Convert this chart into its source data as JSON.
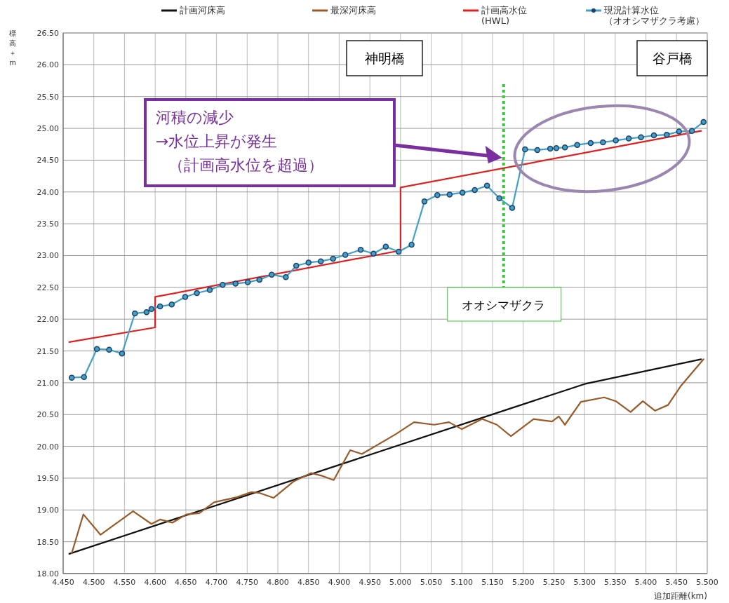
{
  "chart_data": {
    "type": "line",
    "xlabel": "追加距離(km)",
    "ylabel": "標高＋m",
    "xlim": [
      4.45,
      5.5
    ],
    "xticks": [
      {
        "value": 4.45,
        "label": "4.450"
      },
      {
        "value": 4.5,
        "label": "4.500"
      },
      {
        "value": 4.55,
        "label": "4.550"
      },
      {
        "value": 4.6,
        "label": "4.600"
      },
      {
        "value": 4.65,
        "label": "4.650"
      },
      {
        "value": 4.7,
        "label": "4.700"
      },
      {
        "value": 4.75,
        "label": "4.750"
      },
      {
        "value": 4.8,
        "label": "4.800"
      },
      {
        "value": 4.85,
        "label": "4.850"
      },
      {
        "value": 4.9,
        "label": "4.900"
      },
      {
        "value": 4.95,
        "label": "4.950"
      },
      {
        "value": 5.0,
        "label": "5.000"
      },
      {
        "value": 5.05,
        "label": "5.050"
      },
      {
        "value": 5.1,
        "label": "5.100"
      },
      {
        "value": 5.15,
        "label": "5.150"
      },
      {
        "value": 5.2,
        "label": "5.200"
      },
      {
        "value": 5.25,
        "label": "5.250"
      },
      {
        "value": 5.3,
        "label": "5.300"
      },
      {
        "value": 5.35,
        "label": "5.350"
      },
      {
        "value": 5.4,
        "label": "5.400"
      },
      {
        "value": 5.45,
        "label": "5.450"
      },
      {
        "value": 5.5,
        "label": "5.500"
      }
    ],
    "ylim": [
      18,
      26.5
    ],
    "yticks": [
      {
        "value": 18,
        "label": "18.00"
      },
      {
        "value": 18.5,
        "label": "18.50"
      },
      {
        "value": 19,
        "label": "19.00"
      },
      {
        "value": 19.5,
        "label": "19.50"
      },
      {
        "value": 20,
        "label": "20.00"
      },
      {
        "value": 20.5,
        "label": "20.50"
      },
      {
        "value": 21,
        "label": "21.00"
      },
      {
        "value": 21.5,
        "label": "21.50"
      },
      {
        "value": 22,
        "label": "22.00"
      },
      {
        "value": 22.5,
        "label": "22.50"
      },
      {
        "value": 23,
        "label": "23.00"
      },
      {
        "value": 23.5,
        "label": "23.50"
      },
      {
        "value": 24,
        "label": "24.00"
      },
      {
        "value": 24.5,
        "label": "24.50"
      },
      {
        "value": 25,
        "label": "25.00"
      },
      {
        "value": 25.5,
        "label": "25.50"
      },
      {
        "value": 26,
        "label": "26.00"
      },
      {
        "value": 26.5,
        "label": "26.50"
      }
    ],
    "grid": true,
    "legend": "top",
    "line_style": "solid",
    "series": [
      {
        "name": "計画河床高",
        "color": "#111111",
        "marker": "none",
        "x": [
          4.46,
          5.3,
          5.49
        ],
        "values": [
          18.31,
          20.98,
          21.37
        ]
      },
      {
        "name": "最深河床高",
        "color": "#9a5a28",
        "marker": "none",
        "x": [
          4.464,
          4.483,
          4.511,
          4.564,
          4.594,
          4.608,
          4.628,
          4.651,
          4.672,
          4.696,
          4.733,
          4.757,
          4.769,
          4.793,
          4.826,
          4.854,
          4.871,
          4.891,
          4.918,
          4.937,
          4.992,
          5.022,
          5.055,
          5.079,
          5.1,
          5.133,
          5.157,
          5.18,
          5.217,
          5.247,
          5.258,
          5.268,
          5.294,
          5.332,
          5.351,
          5.375,
          5.395,
          5.415,
          5.436,
          5.457,
          5.494
        ],
        "values": [
          18.32,
          18.93,
          18.61,
          18.98,
          18.78,
          18.85,
          18.8,
          18.93,
          18.95,
          19.12,
          19.2,
          19.28,
          19.27,
          19.19,
          19.45,
          19.58,
          19.54,
          19.47,
          19.94,
          19.88,
          20.19,
          20.38,
          20.34,
          20.38,
          20.27,
          20.43,
          20.34,
          20.16,
          20.43,
          20.39,
          20.47,
          20.34,
          20.7,
          20.77,
          20.71,
          20.54,
          20.71,
          20.56,
          20.65,
          20.95,
          21.37
        ]
      },
      {
        "name": "計画高水位(HWL)",
        "color": "#e02020",
        "marker": "none",
        "x": [
          4.46,
          4.6,
          4.6,
          5.0,
          5.0,
          5.49
        ],
        "values": [
          21.64,
          21.87,
          22.35,
          23.08,
          24.07,
          24.96
        ]
      },
      {
        "name": "現況計算水位（オオシマザクラ考慮）",
        "color": "#3fa0c8",
        "marker": "circle",
        "x": [
          4.464,
          4.484,
          4.505,
          4.525,
          4.546,
          4.567,
          4.586,
          4.594,
          4.608,
          4.627,
          4.649,
          4.668,
          4.689,
          4.71,
          4.731,
          4.751,
          4.77,
          4.79,
          4.813,
          4.83,
          4.85,
          4.87,
          4.89,
          4.91,
          4.935,
          4.956,
          4.976,
          4.997,
          5.018,
          5.039,
          5.06,
          5.08,
          5.101,
          5.121,
          5.141,
          5.161,
          5.182,
          5.203,
          5.223,
          5.244,
          5.254,
          5.268,
          5.288,
          5.31,
          5.33,
          5.351,
          5.372,
          5.392,
          5.413,
          5.434,
          5.454,
          5.475,
          5.494
        ],
        "values": [
          21.08,
          21.09,
          21.53,
          21.52,
          21.46,
          22.09,
          22.11,
          22.16,
          22.2,
          22.23,
          22.35,
          22.41,
          22.46,
          22.54,
          22.56,
          22.58,
          22.62,
          22.7,
          22.66,
          22.84,
          22.89,
          22.91,
          22.95,
          23.01,
          23.09,
          23.03,
          23.14,
          23.06,
          23.17,
          23.85,
          23.95,
          23.96,
          23.99,
          24.03,
          24.1,
          23.9,
          23.75,
          24.67,
          24.66,
          24.68,
          24.69,
          24.7,
          24.74,
          24.77,
          24.78,
          24.81,
          24.84,
          24.86,
          24.89,
          24.9,
          24.95,
          24.96,
          25.1
        ]
      }
    ],
    "ref_lines": [
      {
        "axis": "x",
        "value": 5.168,
        "label": "オオシマザクラ",
        "color": "#33cc33",
        "line_style": "dotted"
      }
    ],
    "annotations": [
      "神明橋",
      "谷戸橋",
      "河積の減少→水位上昇が発生（計画高水位を超過）"
    ]
  }
}
